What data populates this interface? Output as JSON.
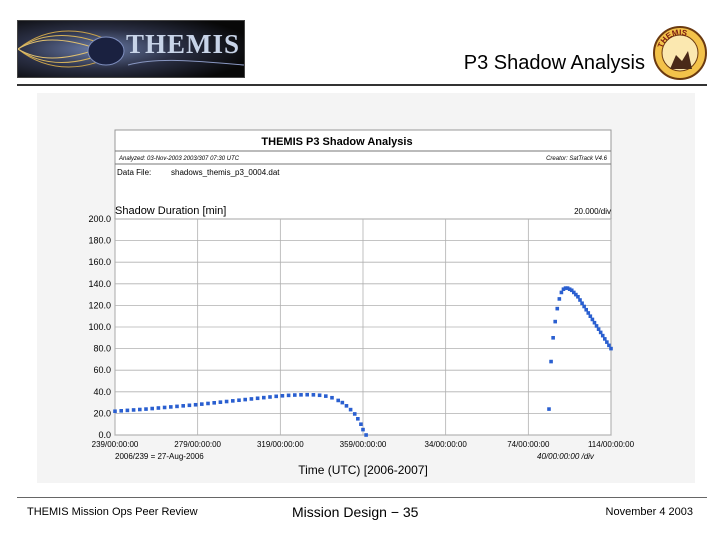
{
  "header": {
    "logo_text": "THEMIS",
    "slide_title": "P3 Shadow Analysis",
    "seal_text": "THEMIS"
  },
  "footer": {
    "left": "THEMIS Mission Ops Peer Review",
    "center": "Mission Design − 35",
    "right": "November 4 2003"
  },
  "report": {
    "title": "THEMIS P3 Shadow Analysis",
    "analyzed": "Analyzed: 03-Nov-2003 2003/307 07:30 UTC",
    "creator": "Creator: SatTrack V4.6",
    "data_file_label": "Data File:",
    "data_file": "shadows_themis_p3_0004.dat"
  },
  "chart_data": {
    "type": "scatter",
    "title": "Shadow Duration [min]",
    "xlabel": "Time (UTC) [2006-2007]",
    "ylabel": "Shadow Duration [min]",
    "y_div_label": "20.000/div",
    "x_div_label": "40/00:00:00 /div",
    "x_sub_label": "2006/239 = 27-Aug-2006",
    "ylim": [
      0,
      200
    ],
    "xlim_days": [
      0,
      240
    ],
    "y_ticks": [
      "0.0",
      "20.0",
      "40.0",
      "60.0",
      "80.0",
      "100.0",
      "120.0",
      "140.0",
      "160.0",
      "180.0",
      "200.0"
    ],
    "x_ticks": [
      "239/00:00:00",
      "279/00:00:00",
      "319/00:00:00",
      "359/00:00:00",
      "34/00:00:00",
      "74/00:00:00",
      "114/00:00:00"
    ],
    "grid": true,
    "color": "#2a5fd0",
    "series": [
      {
        "x_days": [
          0,
          3,
          6,
          9,
          12,
          15,
          18,
          21,
          24,
          27,
          30,
          33,
          36,
          39,
          42,
          45,
          48,
          51,
          54,
          57,
          60,
          63,
          66,
          69,
          72,
          75,
          78,
          81,
          84,
          87,
          90,
          93,
          96,
          99,
          102,
          105,
          108,
          110,
          112,
          114,
          116,
          117.5,
          119,
          120,
          121.5
        ],
        "y": [
          22,
          22.4,
          22.8,
          23.2,
          23.6,
          24,
          24.5,
          25,
          25.5,
          26,
          26.5,
          27,
          27.5,
          28,
          28.6,
          29.2,
          29.8,
          30.4,
          31,
          31.6,
          32.2,
          32.8,
          33.4,
          34,
          34.6,
          35.2,
          35.8,
          36.3,
          36.7,
          37,
          37.2,
          37.3,
          37.2,
          36.8,
          36,
          34.5,
          32,
          30,
          27,
          23.5,
          19.5,
          15,
          10,
          5,
          0
        ]
      },
      {
        "x_days": [
          210,
          211,
          212,
          213,
          214,
          215,
          216,
          217,
          218,
          219,
          220,
          221,
          222,
          223,
          224,
          225,
          226,
          227,
          228,
          229,
          230,
          231,
          232,
          233,
          234,
          235,
          236,
          237,
          238,
          239,
          240
        ],
        "y": [
          24,
          68,
          90,
          105,
          117,
          126,
          132,
          135,
          136,
          136,
          135,
          134,
          132,
          130,
          128,
          125,
          122,
          119,
          116,
          113,
          110,
          107,
          104,
          101,
          98,
          95,
          92,
          89,
          86,
          83,
          80
        ]
      }
    ]
  }
}
